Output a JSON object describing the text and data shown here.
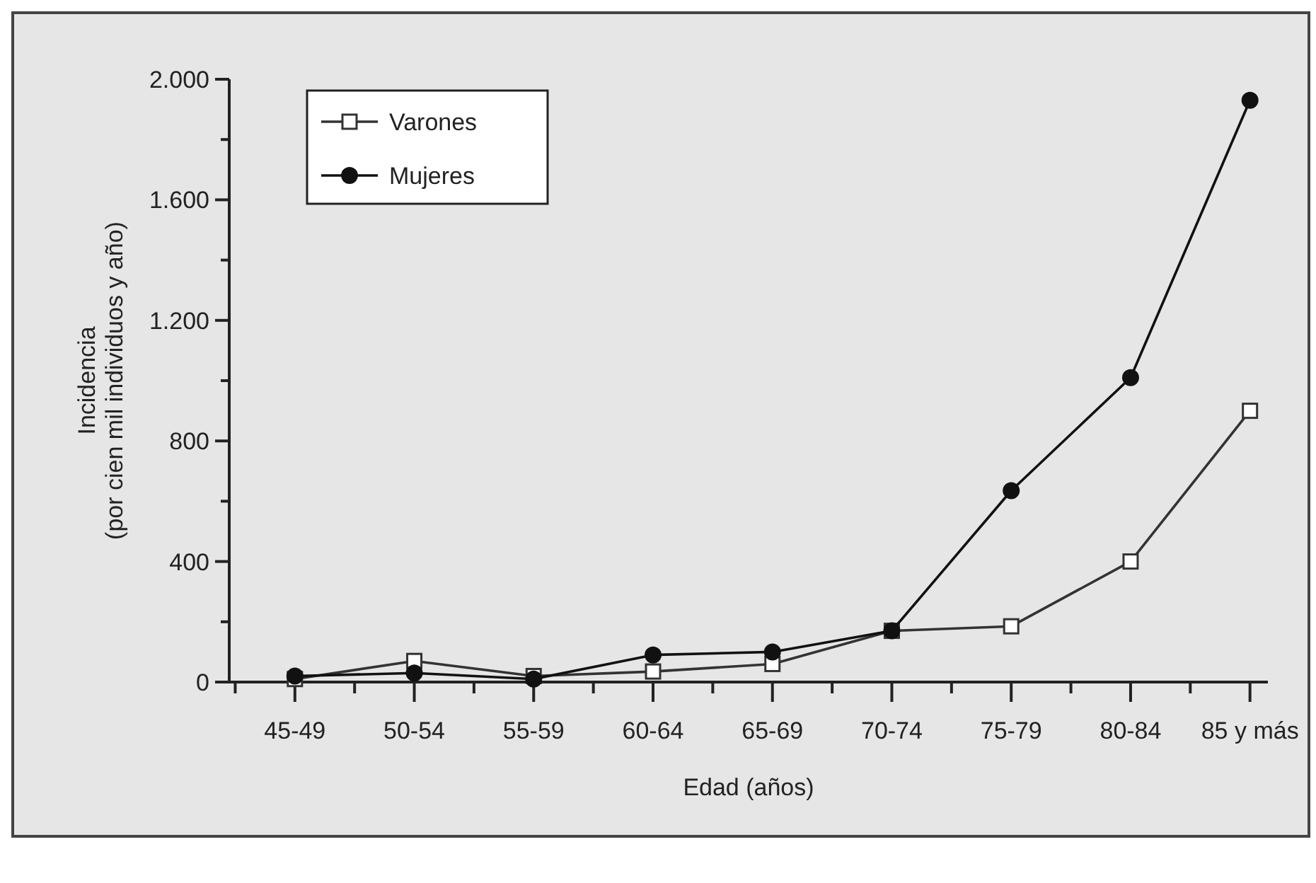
{
  "chart_data": {
    "type": "line",
    "xlabel": "Edad (años)",
    "ylabel": "Incidencia\n(por cien mil individuos y año)",
    "categories": [
      "45-49",
      "50-54",
      "55-59",
      "60-64",
      "65-69",
      "70-74",
      "75-79",
      "80-84",
      "85 y más"
    ],
    "series": [
      {
        "name": "Varones",
        "color": "#333333",
        "marker": "square",
        "values": [
          10,
          70,
          20,
          35,
          60,
          170,
          185,
          400,
          900
        ]
      },
      {
        "name": "Mujeres",
        "color": "#111111",
        "marker": "circle",
        "values": [
          20,
          30,
          10,
          90,
          100,
          170,
          635,
          1010,
          1930
        ]
      }
    ],
    "ylim": [
      0,
      2000
    ],
    "yticks": [
      0,
      {
        "value": 200,
        "label": null
      },
      400,
      {
        "value": 600,
        "label": null
      },
      800,
      {
        "value": 1000,
        "label": null
      },
      {
        "value": 1200,
        "label": "1.200"
      },
      {
        "value": 1400,
        "label": null
      },
      {
        "value": 1600,
        "label": "1.600"
      },
      {
        "value": 1800,
        "label": null
      },
      {
        "value": 2000,
        "label": "2.000"
      }
    ],
    "grid": false,
    "legend": "top left",
    "line_style": "solid"
  }
}
